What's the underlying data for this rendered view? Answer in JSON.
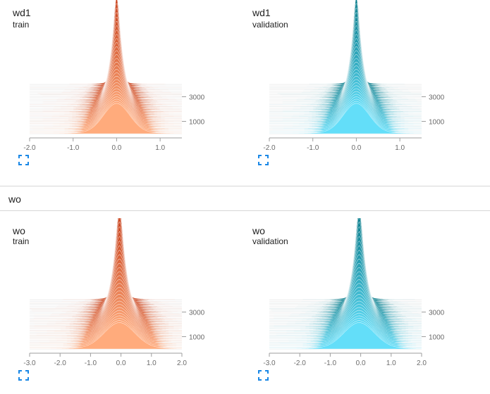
{
  "section": {
    "title": "wo"
  },
  "colors": {
    "train_front": "#ffab7c",
    "train_back": "#c9431d",
    "validation_front": "#63def9",
    "validation_back": "#087d8c",
    "expand_icon": "#1a88e6"
  },
  "charts": [
    {
      "title": "wd1",
      "subtitle": "train",
      "chart_data": {
        "type": "area",
        "xlim": [
          -2.0,
          1.5
        ],
        "xticks": [
          "-2.0",
          "-1.0",
          "0.0",
          "1.0"
        ],
        "xtick_values": [
          -2.0,
          -1.0,
          0.0,
          1.0
        ],
        "step_ticks": [
          "1000",
          "3000"
        ],
        "step_tick_values": [
          1000,
          3000
        ],
        "steps_range": [
          0,
          4000
        ],
        "center": 0.0,
        "spread_front": 0.3,
        "peak_back": 1.0,
        "peak_front": 0.35
      }
    },
    {
      "title": "wd1",
      "subtitle": "validation",
      "chart_data": {
        "type": "area",
        "xlim": [
          -2.0,
          1.5
        ],
        "xticks": [
          "-2.0",
          "-1.0",
          "0.0",
          "1.0"
        ],
        "xtick_values": [
          -2.0,
          -1.0,
          0.0,
          1.0
        ],
        "step_ticks": [
          "1000",
          "3000"
        ],
        "step_tick_values": [
          1000,
          3000
        ],
        "steps_range": [
          0,
          4000
        ],
        "center": 0.0,
        "spread_front": 0.3,
        "peak_back": 1.0,
        "peak_front": 0.35
      }
    },
    {
      "title": "wo",
      "subtitle": "train",
      "chart_data": {
        "type": "area",
        "xlim": [
          -3.0,
          2.0
        ],
        "xticks": [
          "-3.0",
          "-2.0",
          "-1.0",
          "0.0",
          "1.0",
          "2.0"
        ],
        "xtick_values": [
          -3.0,
          -2.0,
          -1.0,
          0.0,
          1.0,
          2.0
        ],
        "step_ticks": [
          "1000",
          "3000"
        ],
        "step_tick_values": [
          1000,
          3000
        ],
        "steps_range": [
          0,
          4000
        ],
        "center": -0.05,
        "spread_front": 0.5,
        "peak_back": 1.0,
        "peak_front": 0.3
      }
    },
    {
      "title": "wo",
      "subtitle": "validation",
      "chart_data": {
        "type": "area",
        "xlim": [
          -3.0,
          2.0
        ],
        "xticks": [
          "-3.0",
          "-2.0",
          "-1.0",
          "0.0",
          "1.0",
          "2.0"
        ],
        "xtick_values": [
          -3.0,
          -2.0,
          -1.0,
          0.0,
          1.0,
          2.0
        ],
        "step_ticks": [
          "1000",
          "3000"
        ],
        "step_tick_values": [
          1000,
          3000
        ],
        "steps_range": [
          0,
          4000
        ],
        "center": -0.05,
        "spread_front": 0.5,
        "peak_back": 1.0,
        "peak_front": 0.3
      }
    }
  ]
}
